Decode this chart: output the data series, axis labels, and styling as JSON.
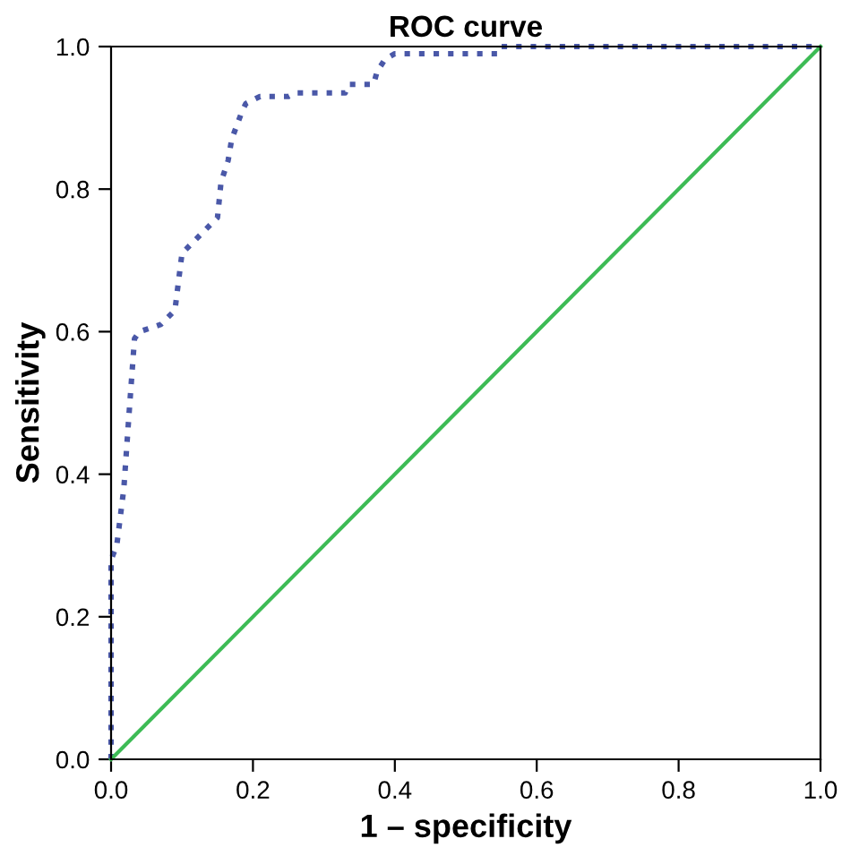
{
  "chart_data": {
    "type": "line",
    "title": "ROC curve",
    "xlabel": "1 – specificity",
    "ylabel": "Sensitivity",
    "series": [
      {
        "color": "#4a58a8",
        "line_style": "dotted",
        "x": [
          0,
          0,
          0.008,
          0.018,
          0.025,
          0.033,
          0.04,
          0.07,
          0.09,
          0.1,
          0.13,
          0.15,
          0.155,
          0.165,
          0.17,
          0.185,
          0.19,
          0.21,
          0.25,
          0.26,
          0.33,
          0.335,
          0.37,
          0.375,
          0.386,
          0.4,
          0.545,
          0.55,
          1.0
        ],
        "values": [
          0,
          0.28,
          0.3,
          0.38,
          0.48,
          0.59,
          0.6,
          0.61,
          0.63,
          0.71,
          0.74,
          0.76,
          0.81,
          0.84,
          0.87,
          0.91,
          0.92,
          0.93,
          0.93,
          0.935,
          0.935,
          0.947,
          0.947,
          0.965,
          0.982,
          0.99,
          0.99,
          1.0,
          1.0
        ]
      },
      {
        "color": "#3dbb55",
        "line_style": "solid",
        "x": [
          0,
          1
        ],
        "values": [
          0,
          1
        ]
      }
    ],
    "xlim": [
      0,
      1
    ],
    "ylim": [
      0,
      1
    ],
    "xticks": [
      {
        "value": 0,
        "label": "0.0"
      },
      {
        "value": 0.2,
        "label": "0.2"
      },
      {
        "value": 0.4,
        "label": "0.4"
      },
      {
        "value": 0.6,
        "label": "0.6"
      },
      {
        "value": 0.8,
        "label": "0.8"
      },
      {
        "value": 1,
        "label": "1.0"
      }
    ],
    "yticks": [
      {
        "value": 0,
        "label": "0.0"
      },
      {
        "value": 0.2,
        "label": "0.2"
      },
      {
        "value": 0.4,
        "label": "0.4"
      },
      {
        "value": 0.6,
        "label": "0.6"
      },
      {
        "value": 0.8,
        "label": "0.8"
      },
      {
        "value": 1,
        "label": "1.0"
      }
    ],
    "grid": false,
    "legend": false,
    "marker": "none"
  }
}
